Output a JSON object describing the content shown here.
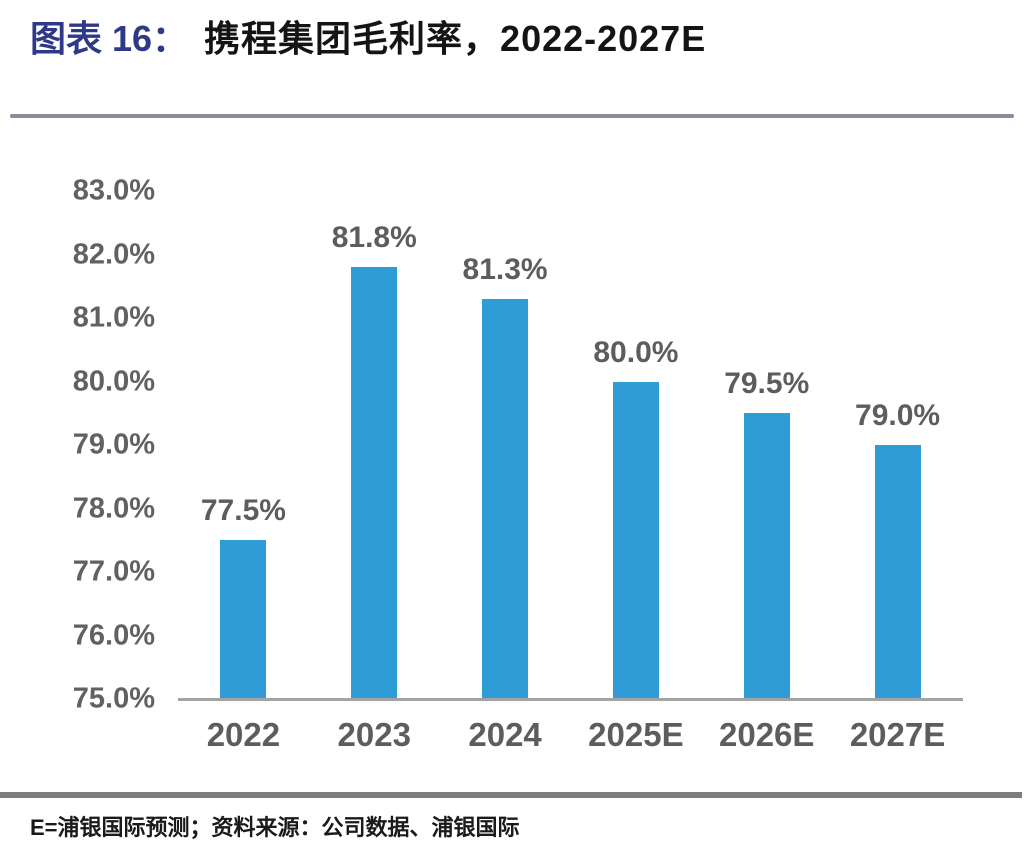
{
  "header": {
    "label": "图表 16：",
    "title": "携程集团毛利率，2022-2027E"
  },
  "chart_data": {
    "type": "bar",
    "title": "携程集团毛利率，2022-2027E",
    "categories": [
      "2022",
      "2023",
      "2024",
      "2025E",
      "2026E",
      "2027E"
    ],
    "values": [
      77.5,
      81.8,
      81.3,
      80.0,
      79.5,
      79.0
    ],
    "data_labels": [
      "77.5%",
      "81.8%",
      "81.3%",
      "80.0%",
      "79.5%",
      "79.0%"
    ],
    "xlabel": "",
    "ylabel": "",
    "ylim": [
      75.0,
      83.0
    ],
    "ytick_step": 1.0,
    "yticks": [
      "83.0%",
      "82.0%",
      "81.0%",
      "80.0%",
      "79.0%",
      "78.0%",
      "77.0%",
      "76.0%",
      "75.0%"
    ],
    "grid": false,
    "legend_position": "none",
    "bar_color": "#2F9DD5"
  },
  "footer": {
    "note": "E=浦银国际预测；资料来源：公司数据、浦银国际"
  },
  "colors": {
    "bar": "#2F9DD5",
    "accent_label": "#2E3A87",
    "title_text": "#141414",
    "axis_text": "#5d5d5d",
    "tick_text": "#616161",
    "axis_line": "#a3a3a3",
    "header_rule": "#8a8a9f",
    "footer_rule": "#7d7d7d"
  }
}
